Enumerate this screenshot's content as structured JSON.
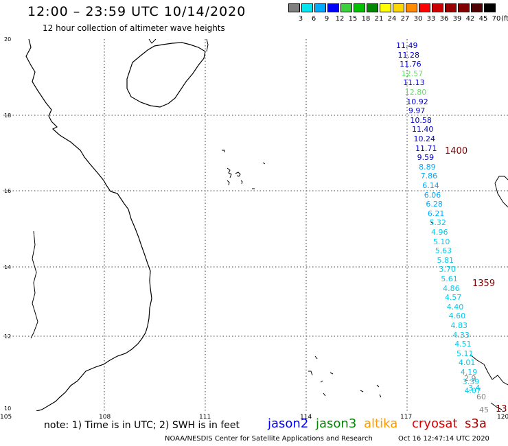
{
  "header": {
    "title": "12:00 – 23:59 UTC 10/14/2020",
    "subtitle": "12 hour collection of altimeter wave heights"
  },
  "color_scale": {
    "labels": [
      "3",
      "6",
      "9",
      "12",
      "15",
      "18",
      "21",
      "24",
      "27",
      "30",
      "33",
      "36",
      "39",
      "42",
      "45",
      "70"
    ],
    "colors": [
      "#7f7f7f",
      "#00e5ee",
      "#00aaff",
      "#0000ff",
      "#3cd13c",
      "#00c000",
      "#008800",
      "#ffff00",
      "#ffd700",
      "#ff8c00",
      "#ff0000",
      "#cc0000",
      "#990000",
      "#800000",
      "#500000",
      "#000000"
    ],
    "unit": "(ft)"
  },
  "axes": {
    "y_ticks": [
      "20",
      "18",
      "16",
      "14",
      "12",
      "10"
    ],
    "x_ticks": [
      "105",
      "108",
      "111",
      "114",
      "117",
      "120"
    ]
  },
  "pass_labels": [
    {
      "text": "1400"
    },
    {
      "text": "1359"
    },
    {
      "text": "13"
    }
  ],
  "wave_heights": [
    {
      "text": "11.49",
      "color": "#0000cc"
    },
    {
      "text": "11.28",
      "color": "#0000cc"
    },
    {
      "text": "11.76",
      "color": "#0000cc"
    },
    {
      "text": "12.57",
      "color": "#66dd66"
    },
    {
      "text": "11.13",
      "color": "#0000cc"
    },
    {
      "text": "12.80",
      "color": "#66dd66"
    },
    {
      "text": "10.92",
      "color": "#0000cc"
    },
    {
      "text": "9.97",
      "color": "#0000cc"
    },
    {
      "text": "10.58",
      "color": "#0000cc"
    },
    {
      "text": "11.40",
      "color": "#0000cc"
    },
    {
      "text": "10.24",
      "color": "#0000cc"
    },
    {
      "text": "11.71",
      "color": "#0000cc"
    },
    {
      "text": "9.59",
      "color": "#0000cc"
    },
    {
      "text": "8.89",
      "color": "#00aaff"
    },
    {
      "text": "7.86",
      "color": "#00aaff"
    },
    {
      "text": "6.14",
      "color": "#00aaff"
    },
    {
      "text": "6.06",
      "color": "#00aaff"
    },
    {
      "text": "6.28",
      "color": "#00aaff"
    },
    {
      "text": "6.21",
      "color": "#00aaff"
    },
    {
      "text": "5.32",
      "color": "#00ccee"
    },
    {
      "text": "4.96",
      "color": "#00ccee"
    },
    {
      "text": "5.10",
      "color": "#00ccee"
    },
    {
      "text": "5.63",
      "color": "#00ccee"
    },
    {
      "text": "5.81",
      "color": "#00ccee"
    },
    {
      "text": "3.70",
      "color": "#00ccee"
    },
    {
      "text": "5.61",
      "color": "#00ccee"
    },
    {
      "text": "4.86",
      "color": "#00ccee"
    },
    {
      "text": "4.57",
      "color": "#00ccee"
    },
    {
      "text": "4.40",
      "color": "#00ccee"
    },
    {
      "text": "4.60",
      "color": "#00ccee"
    },
    {
      "text": "4.83",
      "color": "#00ccee"
    },
    {
      "text": "4.33",
      "color": "#00ccee"
    },
    {
      "text": "4.51",
      "color": "#00ccee"
    },
    {
      "text": "5.11",
      "color": "#00ccee"
    },
    {
      "text": "4.01",
      "color": "#00ccee"
    },
    {
      "text": "4.19",
      "color": "#00ccee"
    },
    {
      "text": "3.39",
      "color": "#00ccee"
    },
    {
      "text": "4.07",
      "color": "#00ccee"
    },
    {
      "text": "2.9",
      "color": "#888888"
    },
    {
      "text": "3.4",
      "color": "#00ccee"
    },
    {
      "text": "60",
      "color": "#888888"
    },
    {
      "text": "45",
      "color": "#888888"
    }
  ],
  "footer": {
    "note": "note: 1) Time is in UTC; 2) SWH is in feet",
    "satellites": [
      {
        "name": "jason2",
        "color": "#0000ff"
      },
      {
        "name": "jason3",
        "color": "#008800"
      },
      {
        "name": "altika",
        "color": "#ff9900"
      },
      {
        "name": "cryosat",
        "color": "#dd0000"
      },
      {
        "name": "s3a",
        "color": "#aa0000"
      }
    ],
    "credit": "NOAA/NESDIS Center for Satellite Applications and Research",
    "timestamp": "Oct 16 12:47:14 UTC 2020"
  }
}
